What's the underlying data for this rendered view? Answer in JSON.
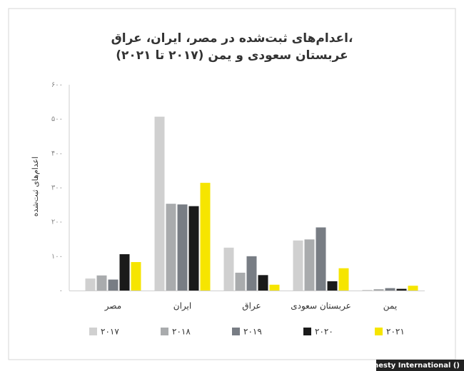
{
  "chart_data": {
    "type": "bar",
    "title_lines": [
      "اعدام‌های ثبت‌شده در مصر، ایران، عراق،",
      "عربستان سعودی و یمن (۲۰۱۷ تا ۲۰۲۱)"
    ],
    "y_label": "اعدام‌های ثبت‌شده",
    "categories": [
      "مصر",
      "ایران",
      "عراق",
      "عربستان سعودی",
      "یمن"
    ],
    "series": [
      {
        "name": "۲۰۱۷",
        "color": "#d0d0d0",
        "values": [
          35,
          507,
          125,
          146,
          2
        ]
      },
      {
        "name": "۲۰۱۸",
        "color": "#a9abad",
        "values": [
          44,
          253,
          52,
          149,
          4
        ]
      },
      {
        "name": "۲۰۱۹",
        "color": "#787d84",
        "values": [
          32,
          251,
          100,
          184,
          7
        ]
      },
      {
        "name": "۲۰۲۰",
        "color": "#1a1a1a",
        "values": [
          106,
          246,
          45,
          27,
          5
        ]
      },
      {
        "name": "۲۰۲۱",
        "color": "#f6e500",
        "values": [
          83,
          314,
          17,
          65,
          14
        ]
      }
    ],
    "ylim": [
      0,
      600
    ],
    "yticks": [
      {
        "value": 0,
        "label": "۰"
      },
      {
        "value": 100,
        "label": "۱۰۰"
      },
      {
        "value": 200,
        "label": "۲۰۰"
      },
      {
        "value": 300,
        "label": "۳۰۰"
      },
      {
        "value": 400,
        "label": "۴۰۰"
      },
      {
        "value": 500,
        "label": "۵۰۰"
      },
      {
        "value": 600,
        "label": "۶۰۰"
      }
    ],
    "grid": false,
    "credit": "Amnesty International ()"
  }
}
